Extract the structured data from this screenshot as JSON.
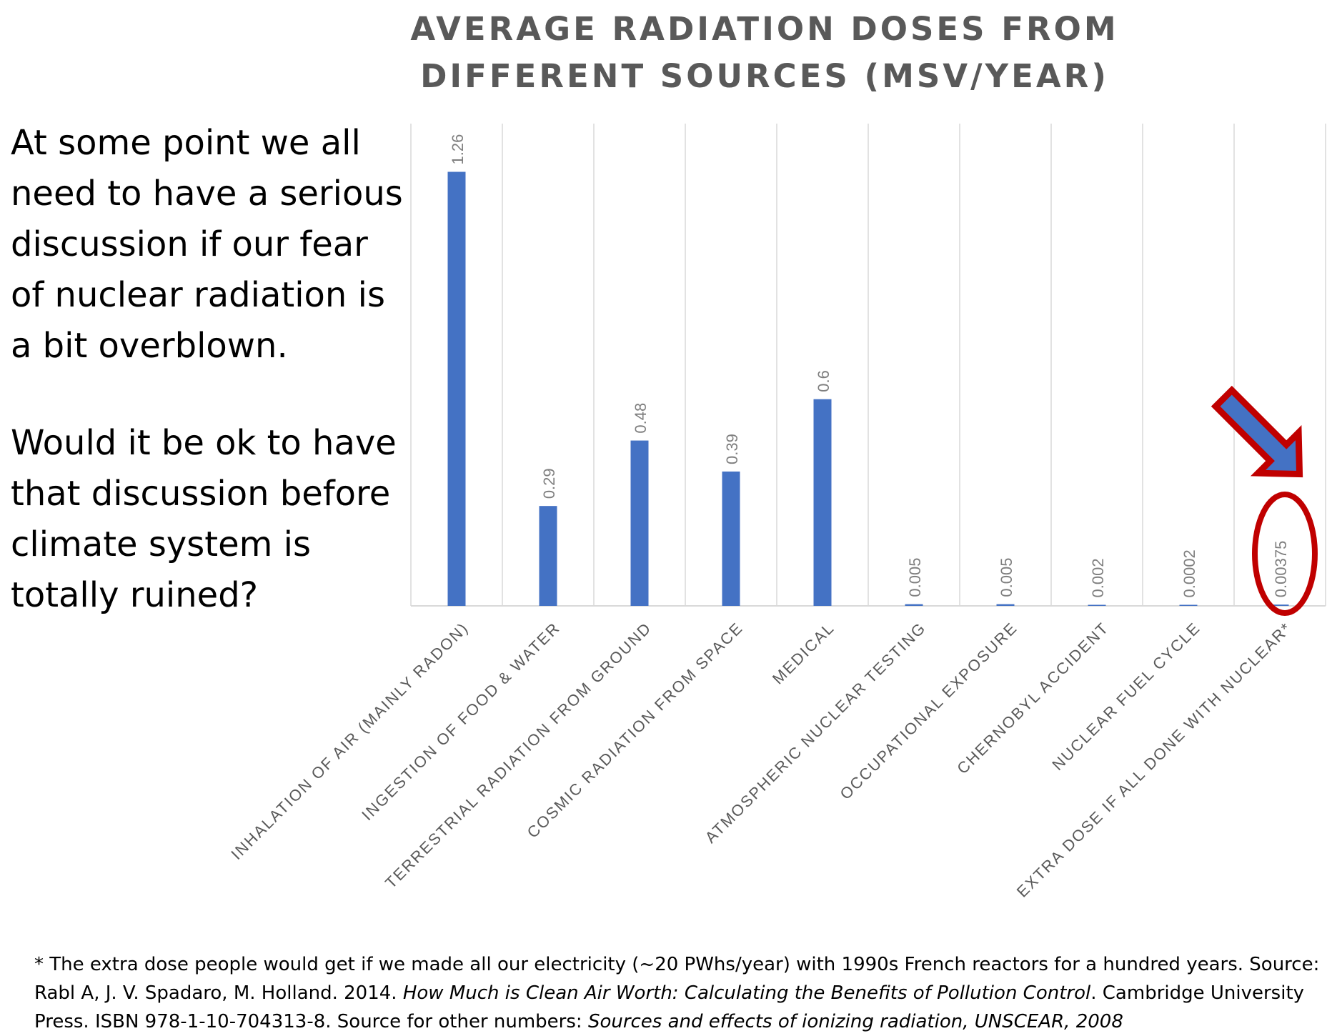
{
  "commentary": {
    "paragraph1": "At some point we all need to have a serious discussion if our fear of nuclear radiation is a bit overblown.",
    "paragraph2": "Would it be ok to have that discussion before climate system is totally ruined?"
  },
  "footnote": {
    "part1": "* The extra dose people would get if we made all our electricity (~20 PWhs/year) with 1990s French reactors for a hundred years. Source: Rabl A, J. V. Spadaro, M. Holland. 2014. ",
    "book_title": "How Much is Clean Air Worth: Calculating the Benefits of Pollution Control",
    "part2": ". Cambridge University Press. ISBN 978-1-10-704313-8. Source for other numbers: ",
    "source_title": "Sources and effects of ionizing radiation, UNSCEAR, 2008"
  },
  "chart_data": {
    "type": "bar",
    "title": "AVERAGE RADIATION DOSES FROM DIFFERENT SOURCES (MSV/YEAR)",
    "categories": [
      "INHALATION OF AIR (MAINLY RADON)",
      "INGESTION OF FOOD & WATER",
      "TERRESTRIAL RADIATION FROM GROUND",
      "COSMIC RADIATION FROM SPACE",
      "MEDICAL",
      "ATMOSPHERIC NUCLEAR TESTING",
      "OCCUPATIONAL EXPOSURE",
      "CHERNOBYL ACCIDENT",
      "NUCLEAR FUEL CYCLE",
      "EXTRA DOSE IF ALL DONE WITH NUCLEAR*"
    ],
    "values": [
      1.26,
      0.29,
      0.48,
      0.39,
      0.6,
      0.005,
      0.005,
      0.002,
      0.0002,
      0.00375
    ],
    "value_labels": [
      "1.26",
      "0.29",
      "0.48",
      "0.39",
      "0.6",
      "0.005",
      "0.005",
      "0.002",
      "0.0002",
      "0.00375"
    ],
    "ylim": [
      0,
      1.4
    ],
    "grid": "vertical-category-lines",
    "bar_color": "#4472C4",
    "highlight_index": 9,
    "highlight_color": "#C00000",
    "annotations": [
      "red-arrow-pointing-to-last-bar",
      "red-ellipse-around-last-label"
    ]
  }
}
